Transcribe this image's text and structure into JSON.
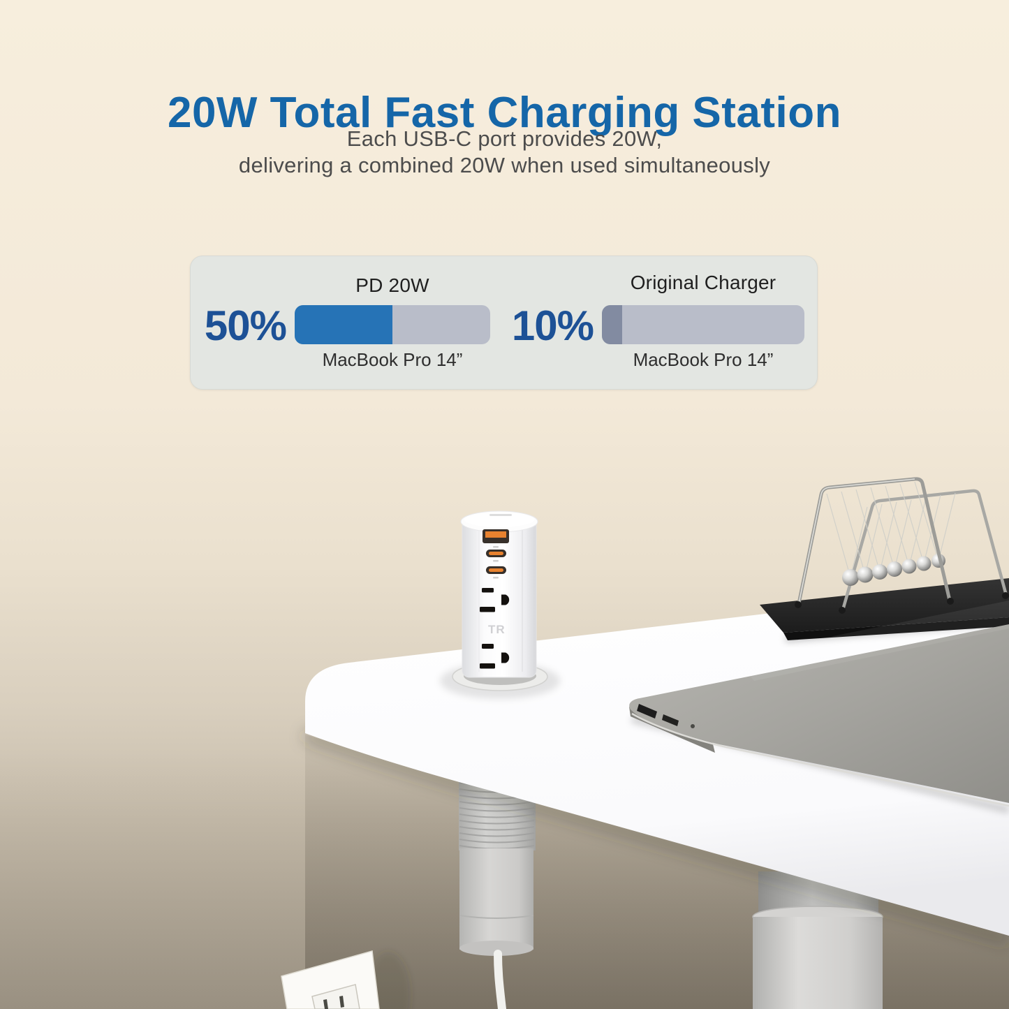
{
  "header": {
    "title": "20W Total Fast Charging Station",
    "subtitle_line1": "Each USB-C port provides 20W,",
    "subtitle_line2": "delivering a combined 20W when used simultaneously"
  },
  "chart_panel": {
    "groups": [
      {
        "percent": "50%",
        "label": "PD 20W",
        "device": "MacBook Pro 14”",
        "value_pct": 50
      },
      {
        "percent": "10%",
        "label": "Original Charger",
        "device": "MacBook Pro 14”",
        "value_pct": 10
      }
    ]
  },
  "chart_data": {
    "type": "bar",
    "orientation": "horizontal",
    "categories": [
      "PD 20W",
      "Original Charger"
    ],
    "values": [
      50,
      10
    ],
    "value_unit": "%",
    "bar_sublabels": [
      "MacBook Pro 14”",
      "MacBook Pro 14”"
    ],
    "xlim": [
      0,
      100
    ],
    "grid": false,
    "legend": false,
    "title": ""
  },
  "scene": {
    "power_tower": {
      "tr_label": "TR"
    }
  },
  "colors": {
    "title_blue": "#1566a8",
    "percent_blue": "#1d5196",
    "bar_blue": "#2673b6",
    "bar_track": "#b9bdc9",
    "bar_gray_fill": "#828ba1",
    "panel_bg": "#e3e6e2",
    "subtitle_gray": "#4c4c4c",
    "label_dark": "#1f1f1f",
    "background_cream": "#f6eedc",
    "usb_orange": "#e8822f"
  }
}
